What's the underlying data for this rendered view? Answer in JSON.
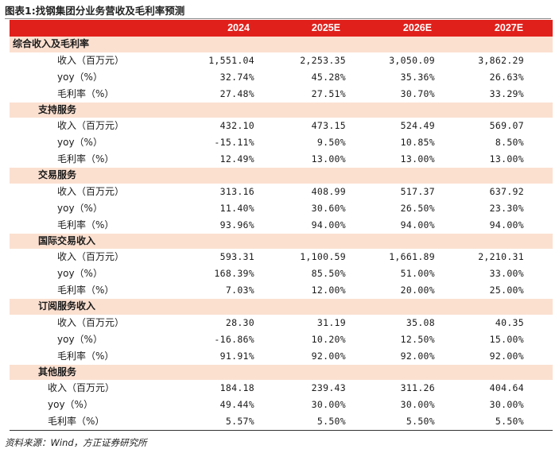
{
  "title": "图表1:找钢集团分业务营收及毛利率预测",
  "header": [
    "2024",
    "2025E",
    "2026E",
    "2027E"
  ],
  "sections": [
    {
      "name": "综合收入及毛利率",
      "rows": [
        {
          "label": "收入（百万元）",
          "values": [
            "1,551.04",
            "2,253.35",
            "3,050.09",
            "3,862.29"
          ]
        },
        {
          "label": "yoy（%）",
          "values": [
            "32.74%",
            "45.28%",
            "35.36%",
            "26.63%"
          ]
        },
        {
          "label": "毛利率（%）",
          "values": [
            "27.48%",
            "27.51%",
            "30.70%",
            "33.29%"
          ]
        }
      ]
    },
    {
      "name": "支持服务",
      "rows": [
        {
          "label": "收入（百万元）",
          "values": [
            "432.10",
            "473.15",
            "524.49",
            "569.07"
          ]
        },
        {
          "label": "yoy（%）",
          "values": [
            "-15.11%",
            "9.50%",
            "10.85%",
            "8.50%"
          ]
        },
        {
          "label": "毛利率（%）",
          "values": [
            "12.49%",
            "13.00%",
            "13.00%",
            "13.00%"
          ]
        }
      ]
    },
    {
      "name": "交易服务",
      "rows": [
        {
          "label": "收入（百万元）",
          "values": [
            "313.16",
            "408.99",
            "517.37",
            "637.92"
          ]
        },
        {
          "label": "yoy（%）",
          "values": [
            "11.40%",
            "30.60%",
            "26.50%",
            "23.30%"
          ]
        },
        {
          "label": "毛利率（%）",
          "values": [
            "93.96%",
            "94.00%",
            "94.00%",
            "94.00%"
          ]
        }
      ]
    },
    {
      "name": "国际交易收入",
      "rows": [
        {
          "label": "收入（百万元）",
          "values": [
            "593.31",
            "1,100.59",
            "1,661.89",
            "2,210.31"
          ]
        },
        {
          "label": "yoy（%）",
          "values": [
            "168.39%",
            "85.50%",
            "51.00%",
            "33.00%"
          ]
        },
        {
          "label": "毛利率（%）",
          "values": [
            "7.03%",
            "12.00%",
            "20.00%",
            "25.00%"
          ]
        }
      ]
    },
    {
      "name": "订阅服务收入",
      "rows": [
        {
          "label": "收入（百万元）",
          "values": [
            "28.30",
            "31.19",
            "35.08",
            "40.35"
          ]
        },
        {
          "label": "yoy（%）",
          "values": [
            "-16.86%",
            "10.20%",
            "12.50%",
            "15.00%"
          ]
        },
        {
          "label": "毛利率（%）",
          "values": [
            "91.91%",
            "92.00%",
            "92.00%",
            "92.00%"
          ]
        }
      ]
    },
    {
      "name": "其他服务",
      "rows": [
        {
          "label": "收入（百万元）",
          "values": [
            "184.18",
            "239.43",
            "311.26",
            "404.64"
          ]
        },
        {
          "label": "yoy（%）",
          "values": [
            "49.44%",
            "30.00%",
            "30.00%",
            "30.00%"
          ]
        },
        {
          "label": "毛利率（%）",
          "values": [
            "5.57%",
            "5.50%",
            "5.50%",
            "5.50%"
          ]
        }
      ]
    }
  ],
  "source": "资料来源：Wind，方正证券研究所"
}
